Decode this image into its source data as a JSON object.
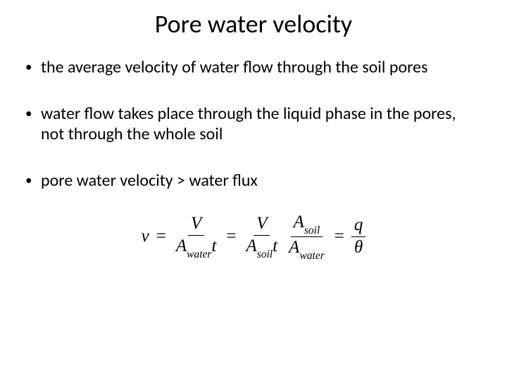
{
  "slide": {
    "title": "Pore water velocity",
    "title_fontsize_pt": 36,
    "body_fontsize_pt": 24,
    "font_family": "Calibri",
    "background_color": "#ffffff",
    "text_color": "#000000",
    "bullets": [
      "the average velocity of water flow through the soil pores",
      "water flow takes place through the liquid phase in the pores, not through the whole soil",
      "pore water velocity > water flux"
    ],
    "equation": {
      "lhs": "v",
      "eq": "=",
      "term1": {
        "num": "V",
        "den_sym": "A",
        "den_sub": "water",
        "den_tail": "t"
      },
      "term2": {
        "num": "V",
        "den_sym": "A",
        "den_sub": "soil",
        "den_tail": "t"
      },
      "term3": {
        "num_sym": "A",
        "num_sub": "soil",
        "den_sym": "A",
        "den_sub": "water"
      },
      "term4": {
        "num": "q",
        "den": "θ"
      },
      "font_family": "Cambria Math",
      "fontsize_pt": 25,
      "color": "#000000"
    }
  }
}
